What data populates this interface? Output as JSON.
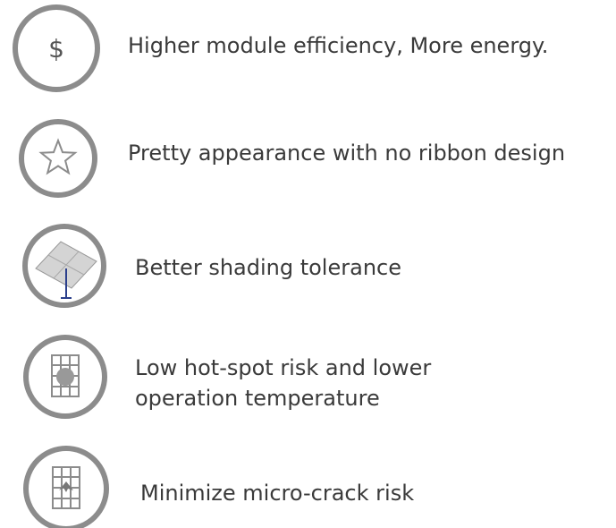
{
  "features": [
    {
      "icon": "$",
      "lines": [
        "Higher module efficiency, More energy."
      ]
    },
    {
      "lines": [
        "Pretty appearance with no ribbon design"
      ]
    },
    {
      "lines": [
        "Better shading tolerance"
      ]
    },
    {
      "lines": [
        "Low hot-spot risk and lower",
        "operation temperature"
      ]
    },
    {
      "lines": [
        "Minimize micro-crack risk"
      ]
    }
  ]
}
